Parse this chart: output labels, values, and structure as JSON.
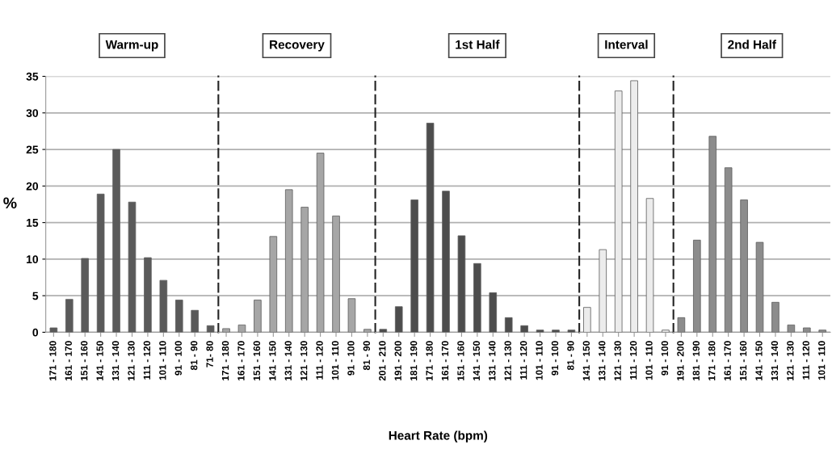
{
  "chart_data": [
    {
      "type": "bar",
      "title": "Warm-up",
      "ylabel": "%",
      "categories": [
        "171 - 180",
        "161 - 170",
        "151 - 160",
        "141 - 150",
        "131 - 140",
        "121 - 130",
        "111 - 120",
        "101 - 110",
        "91 - 100",
        "81 - 90",
        "71- 80"
      ],
      "values": [
        0.6,
        4.5,
        10.1,
        18.9,
        25,
        17.8,
        10.2,
        7.1,
        4.4,
        3.0,
        0.9
      ],
      "color": "#5a5a5a",
      "ylim": [
        0,
        35
      ],
      "yticks": [
        0,
        5,
        10,
        15,
        20,
        25,
        30,
        35
      ],
      "grid": "y"
    },
    {
      "type": "bar",
      "title": "Recovery",
      "categories": [
        "171 - 180",
        "161 - 170",
        "151 - 160",
        "141 - 150",
        "131 - 140",
        "121 - 130",
        "111 - 120",
        "101 - 110",
        "91 - 100",
        "81 - 90"
      ],
      "values": [
        0.5,
        1.0,
        4.4,
        13.1,
        19.5,
        17.1,
        24.5,
        15.9,
        4.6,
        0.4
      ],
      "color": "#a6a6a6",
      "ylim": [
        0,
        35
      ],
      "yticks": [
        0,
        5,
        10,
        15,
        20,
        25,
        30,
        35
      ],
      "grid": "y",
      "tick_labels": "x"
    },
    {
      "type": "bar",
      "title": "1st Half",
      "xlabel": "Heart Rate (bpm)",
      "categories": [
        "201 - 210",
        "191 - 200",
        "181 - 190",
        "171 - 180",
        "161 - 170",
        "151 - 160",
        "141 - 150",
        "131 - 140",
        "121 - 130",
        "111 - 120",
        "101 - 110",
        "91 - 100",
        "81 - 90"
      ],
      "values": [
        0.4,
        3.5,
        18.1,
        28.6,
        19.3,
        13.2,
        9.4,
        5.4,
        2.0,
        0.9,
        0.3,
        0.3,
        0.3
      ],
      "color": "#4d4d4d",
      "ylim": [
        0,
        35
      ],
      "yticks": [
        0,
        5,
        10,
        15,
        20,
        25,
        30,
        35
      ],
      "grid": "y",
      "tick_labels": "x"
    },
    {
      "type": "bar",
      "title": "Interval",
      "categories": [
        "141 - 150",
        "131 - 140",
        "121 - 130",
        "111 - 120",
        "101 - 110",
        "91 - 100"
      ],
      "values": [
        3.4,
        11.3,
        33.0,
        34.4,
        18.3,
        0.3
      ],
      "color": "#ececec",
      "ylim": [
        0,
        35
      ],
      "yticks": [
        0,
        5,
        10,
        15,
        20,
        25,
        30,
        35
      ],
      "grid": "y",
      "tick_labels": "x"
    },
    {
      "type": "bar",
      "title": "2nd Half",
      "categories": [
        "191 - 200",
        "181 - 190",
        "171 - 180",
        "161 - 170",
        "151 - 160",
        "141 - 150",
        "131 - 140",
        "121 - 130",
        "111 - 120",
        "101 - 110"
      ],
      "values": [
        2.0,
        12.6,
        26.8,
        22.5,
        18.1,
        12.3,
        4.1,
        1.0,
        0.6,
        0.3
      ],
      "color": "#8c8c8c",
      "ylim": [
        0,
        35
      ],
      "yticks": [
        0,
        5,
        10,
        15,
        20,
        25,
        30,
        35
      ],
      "grid": "y",
      "tick_labels": "x"
    }
  ]
}
